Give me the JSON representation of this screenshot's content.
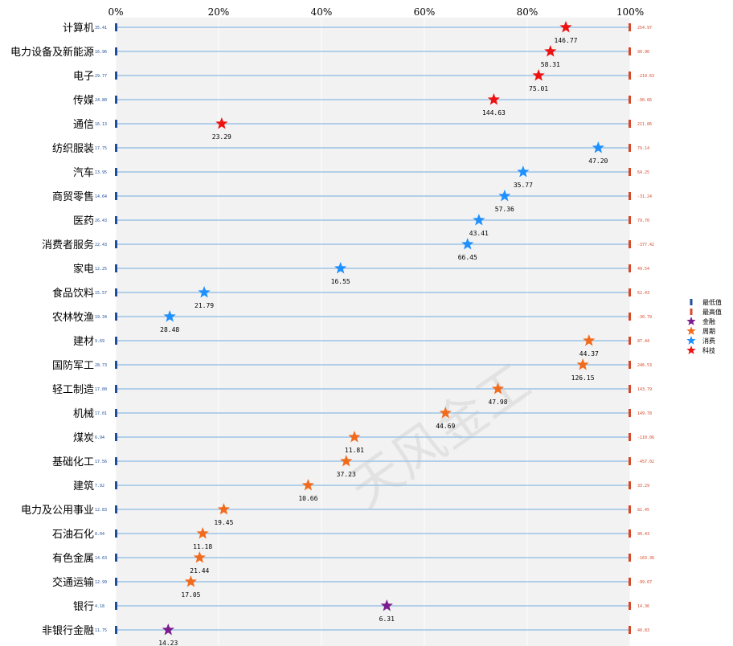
{
  "chart_data": {
    "type": "scatter",
    "xlim": [
      0,
      100
    ],
    "x_ticks": [
      "0%",
      "20%",
      "40%",
      "60%",
      "80%",
      "100%"
    ],
    "grid": true,
    "legend_position": "right",
    "legend": {
      "min_label": "最低值",
      "max_label": "最高值",
      "groups": [
        {
          "name": "金融",
          "color": "#7B1C8E"
        },
        {
          "name": "周期",
          "color": "#F26B1D"
        },
        {
          "name": "消费",
          "color": "#1E90FF"
        },
        {
          "name": "科技",
          "color": "#EE1111"
        }
      ]
    },
    "colors": {
      "min_marker": "#1F4E9B",
      "max_marker": "#D64A2A",
      "line": "#9DC3E6",
      "plot_bg": "#F2F2F2"
    },
    "watermark": "天风金工",
    "rows": [
      {
        "name": "计算机",
        "group": "科技",
        "min": "35.41",
        "max": "254.97",
        "pct": 87.5,
        "pe": "146.77"
      },
      {
        "name": "电力设备及新能源",
        "group": "科技",
        "min": "16.96",
        "max": "90.96",
        "pct": 84.5,
        "pe": "58.31"
      },
      {
        "name": "电子",
        "group": "科技",
        "min": "29.77",
        "max": "-219.63",
        "pct": 82.2,
        "pe": "75.01"
      },
      {
        "name": "传媒",
        "group": "科技",
        "min": "24.80",
        "max": "-90.66",
        "pct": 73.5,
        "pe": "144.63"
      },
      {
        "name": "通信",
        "group": "科技",
        "min": "16.13",
        "max": "211.06",
        "pct": 20.6,
        "pe": "23.29"
      },
      {
        "name": "纺织服装",
        "group": "消费",
        "min": "17.75",
        "max": "79.14",
        "pct": 93.8,
        "pe": "47.20"
      },
      {
        "name": "汽车",
        "group": "消费",
        "min": "13.95",
        "max": "64.25",
        "pct": 79.2,
        "pe": "35.77"
      },
      {
        "name": "商贸零售",
        "group": "消费",
        "min": "14.64",
        "max": "-31.24",
        "pct": 75.6,
        "pe": "57.36"
      },
      {
        "name": "医药",
        "group": "消费",
        "min": "26.43",
        "max": "79.70",
        "pct": 70.6,
        "pe": "43.41"
      },
      {
        "name": "消费者服务",
        "group": "消费",
        "min": "22.43",
        "max": "-377.42",
        "pct": 68.4,
        "pe": "66.45"
      },
      {
        "name": "家电",
        "group": "消费",
        "min": "12.25",
        "max": "49.54",
        "pct": 43.7,
        "pe": "16.55"
      },
      {
        "name": "食品饮料",
        "group": "消费",
        "min": "15.57",
        "max": "62.43",
        "pct": 17.2,
        "pe": "21.79"
      },
      {
        "name": "农林牧渔",
        "group": "消费",
        "min": "19.34",
        "max": "-30.79",
        "pct": 10.5,
        "pe": "28.48"
      },
      {
        "name": "建材",
        "group": "周期",
        "min": "9.69",
        "max": "87.44",
        "pct": 92.0,
        "pe": "44.37"
      },
      {
        "name": "国防军工",
        "group": "周期",
        "min": "28.73",
        "max": "246.53",
        "pct": 90.8,
        "pe": "126.15"
      },
      {
        "name": "轻工制造",
        "group": "周期",
        "min": "17.00",
        "max": "143.79",
        "pct": 74.3,
        "pe": "47.98"
      },
      {
        "name": "机械",
        "group": "周期",
        "min": "17.01",
        "max": "149.78",
        "pct": 64.1,
        "pe": "44.69"
      },
      {
        "name": "煤炭",
        "group": "周期",
        "min": "6.94",
        "max": "-110.06",
        "pct": 46.4,
        "pe": "11.81"
      },
      {
        "name": "基础化工",
        "group": "周期",
        "min": "17.56",
        "max": "-457.02",
        "pct": 44.8,
        "pe": "37.23"
      },
      {
        "name": "建筑",
        "group": "周期",
        "min": "7.92",
        "max": "33.29",
        "pct": 37.4,
        "pe": "10.66"
      },
      {
        "name": "电力及公用事业",
        "group": "周期",
        "min": "12.83",
        "max": "81.45",
        "pct": 21.0,
        "pe": "19.45"
      },
      {
        "name": "石油石化",
        "group": "周期",
        "min": "8.04",
        "max": "90.43",
        "pct": 16.9,
        "pe": "11.18"
      },
      {
        "name": "有色金属",
        "group": "周期",
        "min": "14.63",
        "max": "-163.36",
        "pct": 16.3,
        "pe": "21.44"
      },
      {
        "name": "交通运输",
        "group": "周期",
        "min": "12.99",
        "max": "-99.67",
        "pct": 14.6,
        "pe": "17.05"
      },
      {
        "name": "银行",
        "group": "金融",
        "min": "4.18",
        "max": "14.36",
        "pct": 52.7,
        "pe": "6.31"
      },
      {
        "name": "非银行金融",
        "group": "金融",
        "min": "11.75",
        "max": "40.83",
        "pct": 10.2,
        "pe": "14.23"
      }
    ]
  }
}
